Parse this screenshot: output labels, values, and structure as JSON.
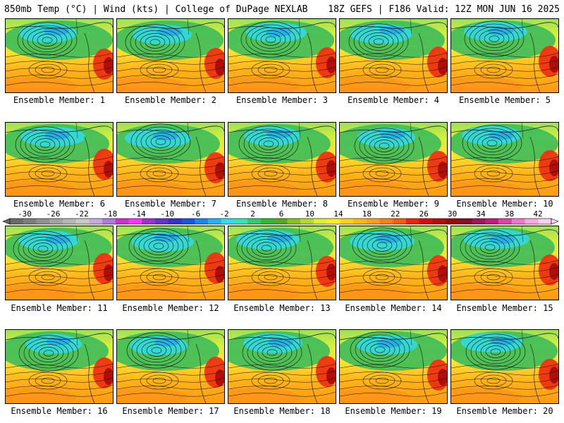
{
  "header": {
    "left": "850mb Temp (°C) | Wind (kts) | College of DuPage NEXLAB",
    "right": "18Z GEFS | F186 Valid: 12Z MON JUN 16 2025"
  },
  "member_prefix": "Ensemble Member:",
  "members": [
    {
      "label": "Ensemble Member: 1"
    },
    {
      "label": "Ensemble Member: 2"
    },
    {
      "label": "Ensemble Member: 3"
    },
    {
      "label": "Ensemble Member: 4"
    },
    {
      "label": "Ensemble Member: 5"
    },
    {
      "label": "Ensemble Member: 6"
    },
    {
      "label": "Ensemble Member: 7"
    },
    {
      "label": "Ensemble Member: 8"
    },
    {
      "label": "Ensemble Member: 9"
    },
    {
      "label": "Ensemble Member: 10"
    },
    {
      "label": "Ensemble Member: 11"
    },
    {
      "label": "Ensemble Member: 12"
    },
    {
      "label": "Ensemble Member: 13"
    },
    {
      "label": "Ensemble Member: 14"
    },
    {
      "label": "Ensemble Member: 15"
    },
    {
      "label": "Ensemble Member: 16"
    },
    {
      "label": "Ensemble Member: 17"
    },
    {
      "label": "Ensemble Member: 18"
    },
    {
      "label": "Ensemble Member: 19"
    },
    {
      "label": "Ensemble Member: 20"
    }
  ],
  "colorbar": {
    "labels": [
      "-30",
      "-26",
      "-22",
      "-18",
      "-14",
      "-10",
      "-6",
      "-2",
      "2",
      "6",
      "10",
      "14",
      "18",
      "22",
      "26",
      "30",
      "34",
      "38",
      "42"
    ],
    "colors": [
      "#6a6a6a",
      "#7d7d7d",
      "#909090",
      "#a3a3a3",
      "#b6b6b6",
      "#c9c9c9",
      "#c6a8e0",
      "#b07ad8",
      "#cc33cc",
      "#ff33ff",
      "#9933cc",
      "#6633cc",
      "#3333cc",
      "#1a55e0",
      "#1a86f0",
      "#22b4f5",
      "#33ddee",
      "#33e6b3",
      "#2ecc71",
      "#33b833",
      "#55a81f",
      "#88c21f",
      "#b5d82a",
      "#ddee33",
      "#ffee22",
      "#ffd21a",
      "#ffbb11",
      "#ffa01a",
      "#ff8011",
      "#ff5a11",
      "#ee2211",
      "#d40e0e",
      "#b40a0a",
      "#960a0a",
      "#880f28",
      "#a0145a",
      "#c01e7a",
      "#dd44aa",
      "#ee77cc",
      "#f5aadd",
      "#fbd0ee"
    ]
  }
}
